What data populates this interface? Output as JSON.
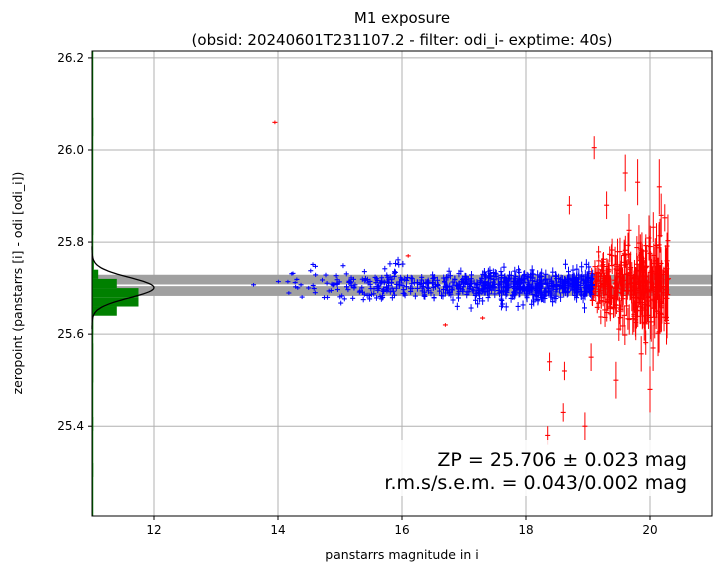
{
  "chart_data": {
    "type": "scatter",
    "title": "M1 exposure",
    "subtitle": "(obsid: 20240601T231107.2 - filter: odi_i- exptime: 40s)",
    "xlabel": "panstarrs magnitude in i",
    "ylabel": "zeropoint (panstarrs [i] - odi [odi_i])",
    "xlim": [
      11.0,
      21.0
    ],
    "ylim": [
      25.205,
      26.215
    ],
    "x_ticks": [
      "12",
      "14",
      "16",
      "18",
      "20"
    ],
    "x_tick_values": [
      12,
      14,
      16,
      18,
      20
    ],
    "y_ticks": [
      "25.4",
      "25.6",
      "25.8",
      "26.0",
      "26.2"
    ],
    "y_tick_values": [
      25.4,
      25.6,
      25.8,
      26.0,
      26.2
    ],
    "grid": true,
    "zp": 25.706,
    "zp_band": [
      25.683,
      25.729
    ],
    "annotations": [
      "ZP = 25.706 ± 0.023 mag",
      "r.m.s/s.e.m. = 0.043/0.002 mag"
    ],
    "colors": {
      "used_stars": "#0000ff",
      "rejected_stars": "#ff0000",
      "histogram": "#008000",
      "gaussian": "#000000",
      "band": "#a0a0a0",
      "grid": "#b0b0b0"
    },
    "blue_seed": 20240601,
    "red_seed": 7110,
    "red_outliers": [
      {
        "x": 13.95,
        "y": 26.06,
        "err": 0.0
      },
      {
        "x": 16.1,
        "y": 25.77,
        "err": 0.0
      },
      {
        "x": 16.7,
        "y": 25.62,
        "err": 0.0
      },
      {
        "x": 17.3,
        "y": 25.635,
        "err": 0.0
      },
      {
        "x": 18.35,
        "y": 25.38,
        "err": 0.02
      },
      {
        "x": 18.38,
        "y": 25.54,
        "err": 0.02
      },
      {
        "x": 18.6,
        "y": 25.43,
        "err": 0.02
      },
      {
        "x": 18.62,
        "y": 25.52,
        "err": 0.02
      },
      {
        "x": 18.95,
        "y": 25.4,
        "err": 0.03
      },
      {
        "x": 19.1,
        "y": 26.005,
        "err": 0.025
      },
      {
        "x": 19.05,
        "y": 25.55,
        "err": 0.03
      },
      {
        "x": 18.7,
        "y": 25.88,
        "err": 0.02
      },
      {
        "x": 19.6,
        "y": 25.95,
        "err": 0.04
      },
      {
        "x": 19.8,
        "y": 25.93,
        "err": 0.05
      },
      {
        "x": 20.15,
        "y": 25.92,
        "err": 0.06
      },
      {
        "x": 20.0,
        "y": 25.48,
        "err": 0.05
      },
      {
        "x": 20.05,
        "y": 25.57,
        "err": 0.05
      },
      {
        "x": 19.3,
        "y": 25.88,
        "err": 0.03
      },
      {
        "x": 19.45,
        "y": 25.5,
        "err": 0.04
      }
    ],
    "histogram": {
      "bins": [
        {
          "y0": 25.64,
          "y1": 25.66,
          "w": 0.4
        },
        {
          "y0": 25.66,
          "y1": 25.68,
          "w": 0.75
        },
        {
          "y0": 25.68,
          "y1": 25.7,
          "w": 0.75
        },
        {
          "y0": 25.7,
          "y1": 25.72,
          "w": 0.4
        },
        {
          "y0": 25.72,
          "y1": 25.74,
          "w": 0.1
        },
        {
          "y0": 25.74,
          "y1": 25.76,
          "w": 0.03
        }
      ],
      "tails": [
        {
          "y0": 25.815,
          "y1": 25.87,
          "w": 0.015
        },
        {
          "y0": 25.6,
          "y1": 25.64,
          "w": 0.015
        },
        {
          "y0": 25.495,
          "y1": 25.58,
          "w": 0.015
        },
        {
          "y0": 26.03,
          "y1": 26.07,
          "w": 0.015
        },
        {
          "y0": 25.39,
          "y1": 25.42,
          "w": 0.015
        },
        {
          "y0": 25.29,
          "y1": 25.32,
          "w": 0.015
        }
      ],
      "gauss_mu": 25.701,
      "gauss_sigma": 0.022,
      "gauss_peak": 1.0
    }
  }
}
